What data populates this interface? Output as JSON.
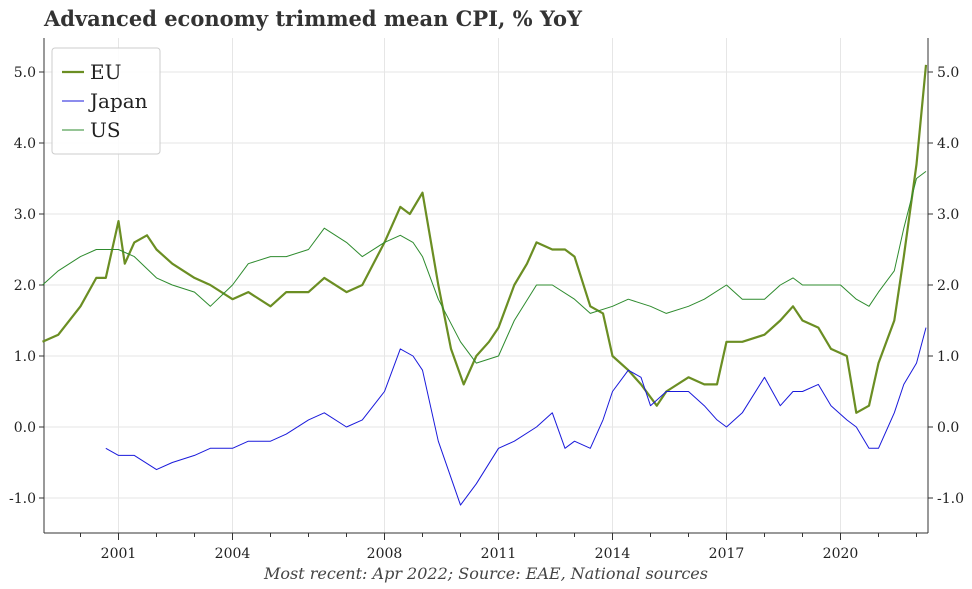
{
  "title": "Advanced economy trimmed mean CPI, % YoY",
  "footer": "Most recent: Apr 2022; Source: EAE, National sources",
  "chart_data": {
    "type": "line",
    "title": "Advanced economy trimmed mean CPI, % YoY",
    "xlabel": "",
    "ylabel": "",
    "x_ticks": [
      "2001",
      "2004",
      "2008",
      "2011",
      "2014",
      "2017",
      "2020"
    ],
    "y_ticks": [
      "-1.0",
      "0.0",
      "1.0",
      "2.0",
      "3.0",
      "4.0",
      "5.0"
    ],
    "ylim": [
      -1.5,
      5.4
    ],
    "grid": true,
    "legend": "top-left",
    "series": [
      {
        "name": "EU",
        "color": "#6b8e23",
        "points": [
          [
            "1999-01",
            1.2
          ],
          [
            "1999-06",
            1.3
          ],
          [
            "2000-01",
            1.7
          ],
          [
            "2000-06",
            2.1
          ],
          [
            "2000-09",
            2.1
          ],
          [
            "2001-01",
            2.9
          ],
          [
            "2001-03",
            2.3
          ],
          [
            "2001-06",
            2.6
          ],
          [
            "2001-10",
            2.7
          ],
          [
            "2002-01",
            2.5
          ],
          [
            "2002-06",
            2.3
          ],
          [
            "2003-01",
            2.1
          ],
          [
            "2003-06",
            2.0
          ],
          [
            "2004-01",
            1.8
          ],
          [
            "2004-06",
            1.9
          ],
          [
            "2005-01",
            1.7
          ],
          [
            "2005-06",
            1.9
          ],
          [
            "2006-01",
            1.9
          ],
          [
            "2006-06",
            2.1
          ],
          [
            "2007-01",
            1.9
          ],
          [
            "2007-06",
            2.0
          ],
          [
            "2008-01",
            2.6
          ],
          [
            "2008-06",
            3.1
          ],
          [
            "2008-09",
            3.0
          ],
          [
            "2009-01",
            3.3
          ],
          [
            "2009-06",
            2.0
          ],
          [
            "2009-10",
            1.1
          ],
          [
            "2010-02",
            0.6
          ],
          [
            "2010-06",
            1.0
          ],
          [
            "2010-10",
            1.2
          ],
          [
            "2011-01",
            1.4
          ],
          [
            "2011-06",
            2.0
          ],
          [
            "2011-10",
            2.3
          ],
          [
            "2012-01",
            2.6
          ],
          [
            "2012-06",
            2.5
          ],
          [
            "2012-10",
            2.5
          ],
          [
            "2013-01",
            2.4
          ],
          [
            "2013-06",
            1.7
          ],
          [
            "2013-10",
            1.6
          ],
          [
            "2014-01",
            1.0
          ],
          [
            "2014-06",
            0.8
          ],
          [
            "2014-10",
            0.6
          ],
          [
            "2015-03",
            0.3
          ],
          [
            "2015-06",
            0.5
          ],
          [
            "2016-01",
            0.7
          ],
          [
            "2016-06",
            0.6
          ],
          [
            "2016-10",
            0.6
          ],
          [
            "2017-01",
            1.2
          ],
          [
            "2017-06",
            1.2
          ],
          [
            "2018-01",
            1.3
          ],
          [
            "2018-06",
            1.5
          ],
          [
            "2018-10",
            1.7
          ],
          [
            "2019-01",
            1.5
          ],
          [
            "2019-06",
            1.4
          ],
          [
            "2019-10",
            1.1
          ],
          [
            "2020-03",
            1.0
          ],
          [
            "2020-06",
            0.2
          ],
          [
            "2020-10",
            0.3
          ],
          [
            "2021-01",
            0.9
          ],
          [
            "2021-06",
            1.5
          ],
          [
            "2021-09",
            2.4
          ],
          [
            "2022-01",
            3.7
          ],
          [
            "2022-04",
            5.1
          ]
        ]
      },
      {
        "name": "Japan",
        "color": "#1a1adb",
        "points": [
          [
            "2000-09",
            -0.3
          ],
          [
            "2001-01",
            -0.4
          ],
          [
            "2001-06",
            -0.4
          ],
          [
            "2002-01",
            -0.6
          ],
          [
            "2002-06",
            -0.5
          ],
          [
            "2003-01",
            -0.4
          ],
          [
            "2003-06",
            -0.3
          ],
          [
            "2004-01",
            -0.3
          ],
          [
            "2004-06",
            -0.2
          ],
          [
            "2005-01",
            -0.2
          ],
          [
            "2005-06",
            -0.1
          ],
          [
            "2006-01",
            0.1
          ],
          [
            "2006-06",
            0.2
          ],
          [
            "2007-01",
            0.0
          ],
          [
            "2007-06",
            0.1
          ],
          [
            "2008-01",
            0.5
          ],
          [
            "2008-06",
            1.1
          ],
          [
            "2008-10",
            1.0
          ],
          [
            "2009-01",
            0.8
          ],
          [
            "2009-06",
            -0.2
          ],
          [
            "2010-01",
            -1.1
          ],
          [
            "2010-06",
            -0.8
          ],
          [
            "2011-01",
            -0.3
          ],
          [
            "2011-06",
            -0.2
          ],
          [
            "2012-01",
            0.0
          ],
          [
            "2012-06",
            0.2
          ],
          [
            "2012-10",
            -0.3
          ],
          [
            "2013-01",
            -0.2
          ],
          [
            "2013-06",
            -0.3
          ],
          [
            "2013-10",
            0.1
          ],
          [
            "2014-01",
            0.5
          ],
          [
            "2014-06",
            0.8
          ],
          [
            "2014-10",
            0.7
          ],
          [
            "2015-01",
            0.3
          ],
          [
            "2015-06",
            0.5
          ],
          [
            "2016-01",
            0.5
          ],
          [
            "2016-06",
            0.3
          ],
          [
            "2016-10",
            0.1
          ],
          [
            "2017-01",
            0.0
          ],
          [
            "2017-06",
            0.2
          ],
          [
            "2018-01",
            0.7
          ],
          [
            "2018-06",
            0.3
          ],
          [
            "2018-10",
            0.5
          ],
          [
            "2019-01",
            0.5
          ],
          [
            "2019-06",
            0.6
          ],
          [
            "2019-10",
            0.3
          ],
          [
            "2020-03",
            0.1
          ],
          [
            "2020-06",
            0.0
          ],
          [
            "2020-10",
            -0.3
          ],
          [
            "2021-01",
            -0.3
          ],
          [
            "2021-06",
            0.2
          ],
          [
            "2021-09",
            0.6
          ],
          [
            "2022-01",
            0.9
          ],
          [
            "2022-04",
            1.4
          ]
        ]
      },
      {
        "name": "US",
        "color": "#2e8b2e",
        "points": [
          [
            "1999-01",
            2.0
          ],
          [
            "1999-06",
            2.2
          ],
          [
            "2000-01",
            2.4
          ],
          [
            "2000-06",
            2.5
          ],
          [
            "2001-01",
            2.5
          ],
          [
            "2001-06",
            2.4
          ],
          [
            "2002-01",
            2.1
          ],
          [
            "2002-06",
            2.0
          ],
          [
            "2003-01",
            1.9
          ],
          [
            "2003-06",
            1.7
          ],
          [
            "2004-01",
            2.0
          ],
          [
            "2004-06",
            2.3
          ],
          [
            "2005-01",
            2.4
          ],
          [
            "2005-06",
            2.4
          ],
          [
            "2006-01",
            2.5
          ],
          [
            "2006-06",
            2.8
          ],
          [
            "2007-01",
            2.6
          ],
          [
            "2007-06",
            2.4
          ],
          [
            "2008-01",
            2.6
          ],
          [
            "2008-06",
            2.7
          ],
          [
            "2008-10",
            2.6
          ],
          [
            "2009-01",
            2.4
          ],
          [
            "2009-06",
            1.8
          ],
          [
            "2010-01",
            1.2
          ],
          [
            "2010-06",
            0.9
          ],
          [
            "2011-01",
            1.0
          ],
          [
            "2011-06",
            1.5
          ],
          [
            "2012-01",
            2.0
          ],
          [
            "2012-06",
            2.0
          ],
          [
            "2013-01",
            1.8
          ],
          [
            "2013-06",
            1.6
          ],
          [
            "2014-01",
            1.7
          ],
          [
            "2014-06",
            1.8
          ],
          [
            "2015-01",
            1.7
          ],
          [
            "2015-06",
            1.6
          ],
          [
            "2016-01",
            1.7
          ],
          [
            "2016-06",
            1.8
          ],
          [
            "2017-01",
            2.0
          ],
          [
            "2017-06",
            1.8
          ],
          [
            "2018-01",
            1.8
          ],
          [
            "2018-06",
            2.0
          ],
          [
            "2018-10",
            2.1
          ],
          [
            "2019-01",
            2.0
          ],
          [
            "2019-06",
            2.0
          ],
          [
            "2020-01",
            2.0
          ],
          [
            "2020-06",
            1.8
          ],
          [
            "2020-10",
            1.7
          ],
          [
            "2021-01",
            1.9
          ],
          [
            "2021-06",
            2.2
          ],
          [
            "2021-09",
            2.8
          ],
          [
            "2022-01",
            3.5
          ],
          [
            "2022-04",
            3.6
          ]
        ]
      }
    ]
  }
}
